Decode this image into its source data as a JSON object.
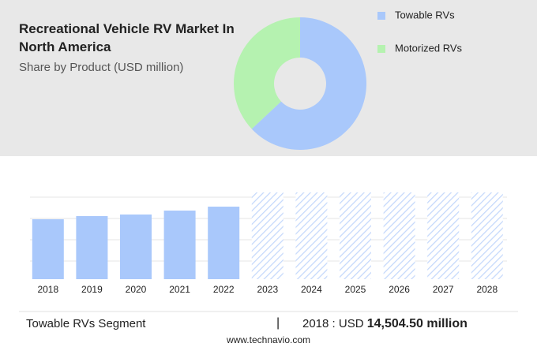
{
  "chart_data": [
    {
      "type": "pie",
      "title": "Recreational Vehicle RV Market In North America",
      "subtitle": "Share by Product (USD million)",
      "categories": [
        "Towable RVs",
        "Motorized RVs"
      ],
      "values": [
        63,
        37
      ],
      "colors": [
        "#a9c8fb",
        "#b5f2b0"
      ],
      "donut": true,
      "legend": "right"
    },
    {
      "type": "bar",
      "categories": [
        "2018",
        "2019",
        "2020",
        "2021",
        "2022",
        "2023",
        "2024",
        "2025",
        "2026",
        "2027",
        "2028"
      ],
      "values": [
        14504.5,
        15268,
        15650,
        16604,
        17558,
        null,
        null,
        null,
        null,
        null,
        null
      ],
      "color": "#a9c8fb",
      "ylim": [
        0,
        21000
      ],
      "footer": {
        "segment": "Towable RVs Segment",
        "divider": "|",
        "currency": ": USD",
        "amount": "14,504.50 million"
      },
      "source": "www.technavio.com"
    }
  ]
}
